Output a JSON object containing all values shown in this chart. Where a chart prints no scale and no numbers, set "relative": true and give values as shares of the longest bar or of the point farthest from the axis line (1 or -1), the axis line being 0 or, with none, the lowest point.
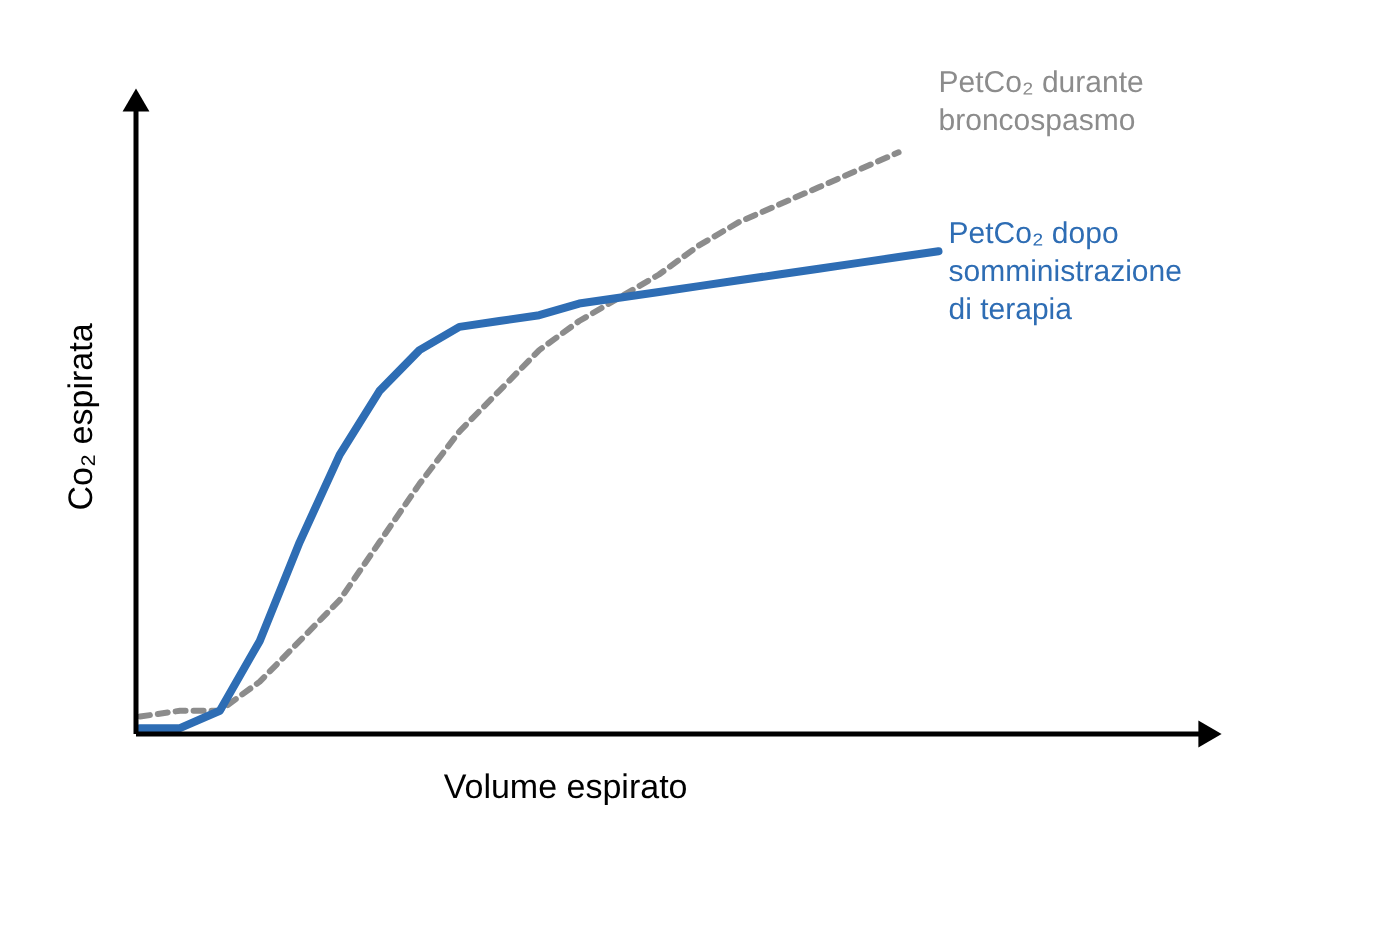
{
  "chart_data": {
    "type": "line",
    "relative": true,
    "xlabel": "Volume espirato",
    "ylabel": "Co₂ espirata",
    "legend": false,
    "categories": [
      null,
      null,
      null,
      null,
      null,
      null,
      null,
      null,
      null,
      null,
      null,
      null,
      null,
      null,
      null,
      null,
      null,
      null,
      null,
      null,
      null
    ],
    "series": [
      {
        "name": "PetCo₂ durante broncospasmo",
        "color": "#8c8c8c",
        "line_style": "dashed",
        "values": [
          0.03,
          0.04,
          0.04,
          0.09,
          0.16,
          0.23,
          0.33,
          0.43,
          0.52,
          0.59,
          0.66,
          0.71,
          0.75,
          0.79,
          0.84,
          0.88,
          0.91,
          0.94,
          0.97,
          1.0,
          null
        ]
      },
      {
        "name": "PetCo₂ dopo somministrazione di terapia",
        "color": "#2e6db4",
        "line_style": "solid",
        "values": [
          0.01,
          0.01,
          0.04,
          0.16,
          0.33,
          0.48,
          0.59,
          0.66,
          0.7,
          0.71,
          0.72,
          0.74,
          0.75,
          0.76,
          0.77,
          0.78,
          0.79,
          0.8,
          0.81,
          0.82,
          0.83
        ]
      }
    ]
  }
}
